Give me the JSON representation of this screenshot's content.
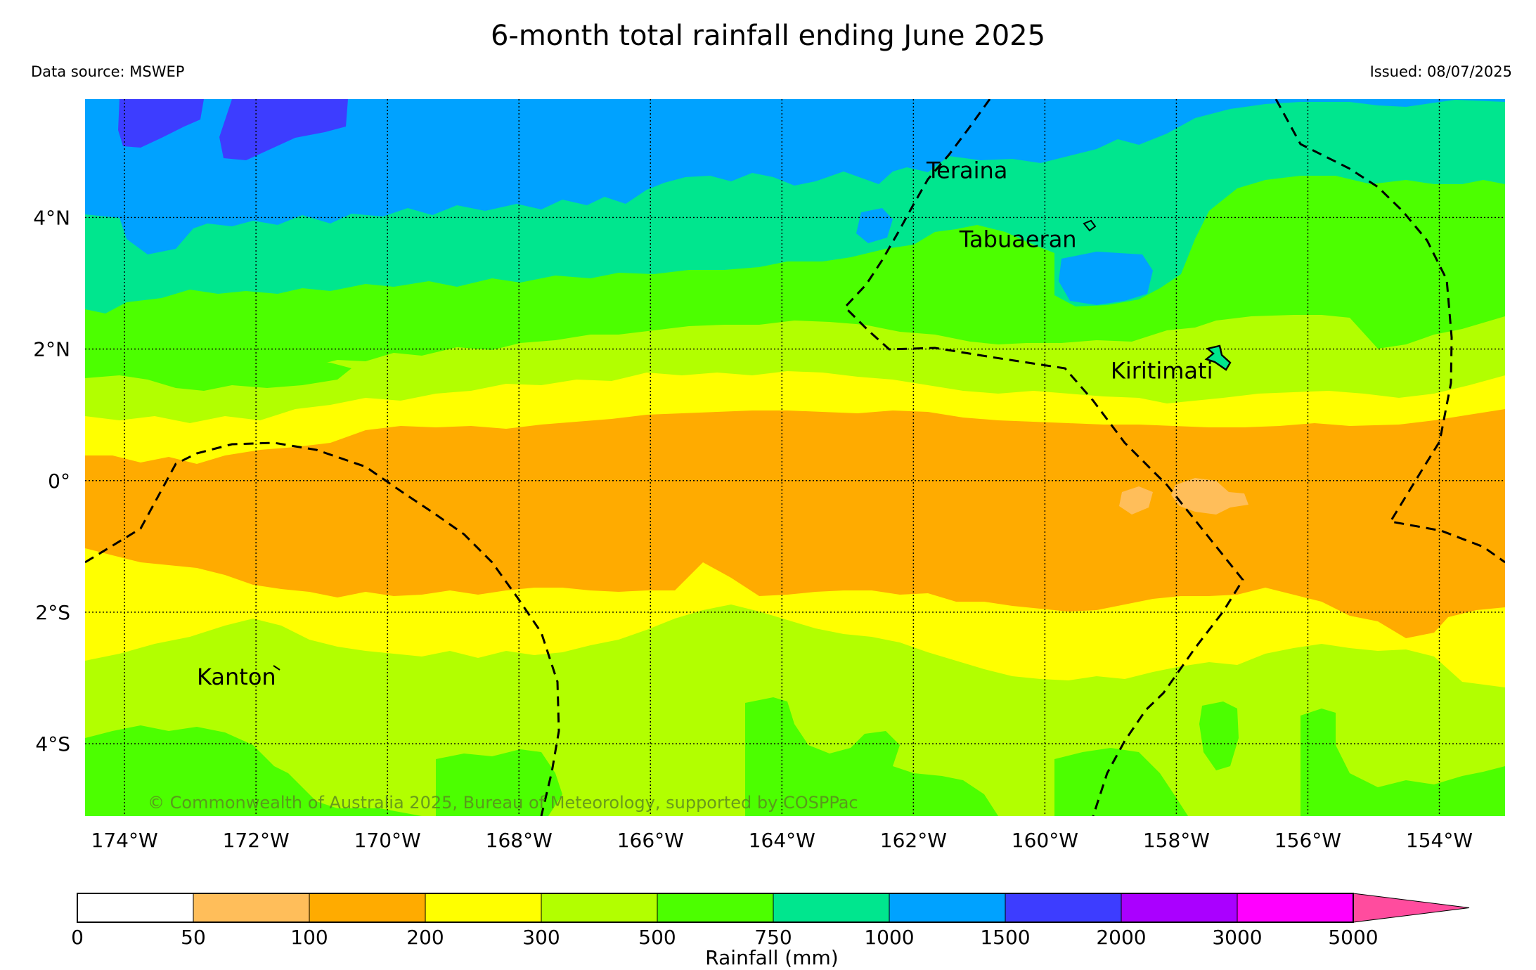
{
  "header": {
    "title": "6-month total rainfall ending June 2025",
    "data_source": "Data source: MSWEP",
    "issued": "Issued: 08/07/2025"
  },
  "map": {
    "lon_range": [
      -174.6,
      -153.0
    ],
    "lat_range": [
      -5.1,
      5.8
    ],
    "lon_ticks": [
      {
        "value": -174,
        "label": "174°W"
      },
      {
        "value": -172,
        "label": "172°W"
      },
      {
        "value": -170,
        "label": "170°W"
      },
      {
        "value": -168,
        "label": "168°W"
      },
      {
        "value": -166,
        "label": "166°W"
      },
      {
        "value": -164,
        "label": "164°W"
      },
      {
        "value": -162,
        "label": "162°W"
      },
      {
        "value": -160,
        "label": "160°W"
      },
      {
        "value": -158,
        "label": "158°W"
      },
      {
        "value": -156,
        "label": "156°W"
      },
      {
        "value": -154,
        "label": "154°W"
      }
    ],
    "lat_ticks": [
      {
        "value": 4,
        "label": "4°N"
      },
      {
        "value": 2,
        "label": "2°N"
      },
      {
        "value": 0,
        "label": "0°"
      },
      {
        "value": -2,
        "label": "2°S"
      },
      {
        "value": -4,
        "label": "4°S"
      }
    ],
    "grid": true,
    "places": [
      {
        "name": "Teraina",
        "lon": -161.8,
        "lat": 4.6
      },
      {
        "name": "Tabuaeran",
        "lon": -161.3,
        "lat": 3.55
      },
      {
        "name": "Kiritimati",
        "lon": -159.0,
        "lat": 1.55
      },
      {
        "name": "Kanton",
        "lon": -172.9,
        "lat": -3.1
      }
    ],
    "copyright": "© Commonwealth of Australia 2025, Bureau of Meteorology, supported by COSPPac"
  },
  "legend": {
    "label": "Rainfall (mm)",
    "ticks": [
      "0",
      "50",
      "100",
      "200",
      "300",
      "500",
      "750",
      "1000",
      "1500",
      "2000",
      "3000",
      "5000"
    ],
    "colors": [
      "#ffffff",
      "#ffbe5a",
      "#ffab00",
      "#ffff00",
      "#b2ff00",
      "#4cff00",
      "#00e68e",
      "#00a2ff",
      "#3d3dff",
      "#aa00ff",
      "#ff00ff"
    ],
    "extend_color": "#ff4c9e"
  },
  "colors": {
    "c100_200": "#ffab00",
    "c50_100": "#ffbe5a",
    "c200_300": "#ffff00",
    "c300_500": "#b2ff00",
    "c500_750": "#4cff00",
    "c750_1000": "#00e68e",
    "c1000_1500": "#00a2ff",
    "c1500_2000": "#3d3dff"
  }
}
